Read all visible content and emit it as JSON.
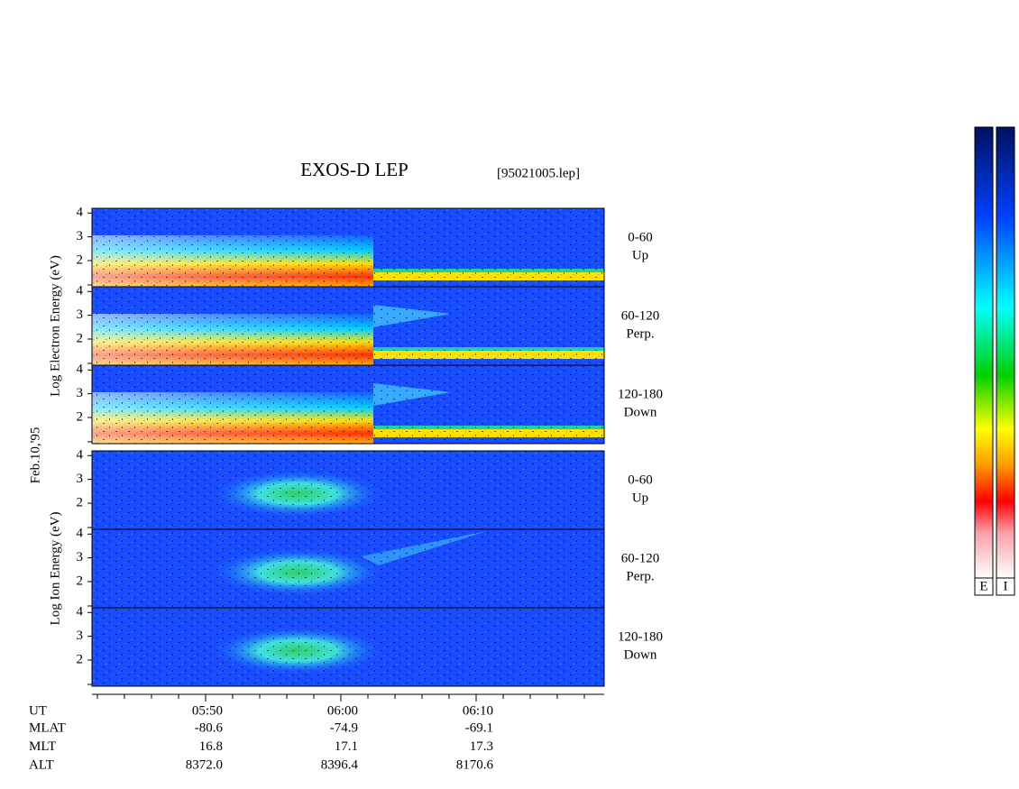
{
  "chart_data": {
    "type": "spectrogram",
    "title": "EXOS-D LEP",
    "file": "[95021005.lep]",
    "date": "Feb.10,'95",
    "groups": [
      {
        "kind": "electron",
        "ylabel": "Log Electron Energy (eV)",
        "panels": [
          {
            "label": "0-60",
            "direction": "Up"
          },
          {
            "label": "60-120",
            "direction": "Perp."
          },
          {
            "label": "120-180",
            "direction": "Down"
          }
        ]
      },
      {
        "kind": "ion",
        "ylabel": "Log Ion Energy (eV)",
        "panels": [
          {
            "label": "0-60",
            "direction": "Up"
          },
          {
            "label": "60-120",
            "direction": "Perp."
          },
          {
            "label": "120-180",
            "direction": "Down"
          }
        ]
      }
    ],
    "ylim": [
      0.9,
      4.2
    ],
    "yticks": [
      2,
      3,
      4
    ],
    "x_label": "UT",
    "xticks": [
      "05:50",
      "06:00",
      "06:10"
    ],
    "orbit": [
      {
        "name": "MLAT",
        "values": [
          "-80.6",
          "-74.9",
          "-69.1"
        ]
      },
      {
        "name": "MLT",
        "values": [
          "16.8",
          "17.1",
          "17.3"
        ]
      },
      {
        "name": "ALT",
        "values": [
          "8372.0",
          "8396.4",
          "8170.6"
        ]
      }
    ],
    "colorbars": [
      "E",
      "I"
    ]
  }
}
